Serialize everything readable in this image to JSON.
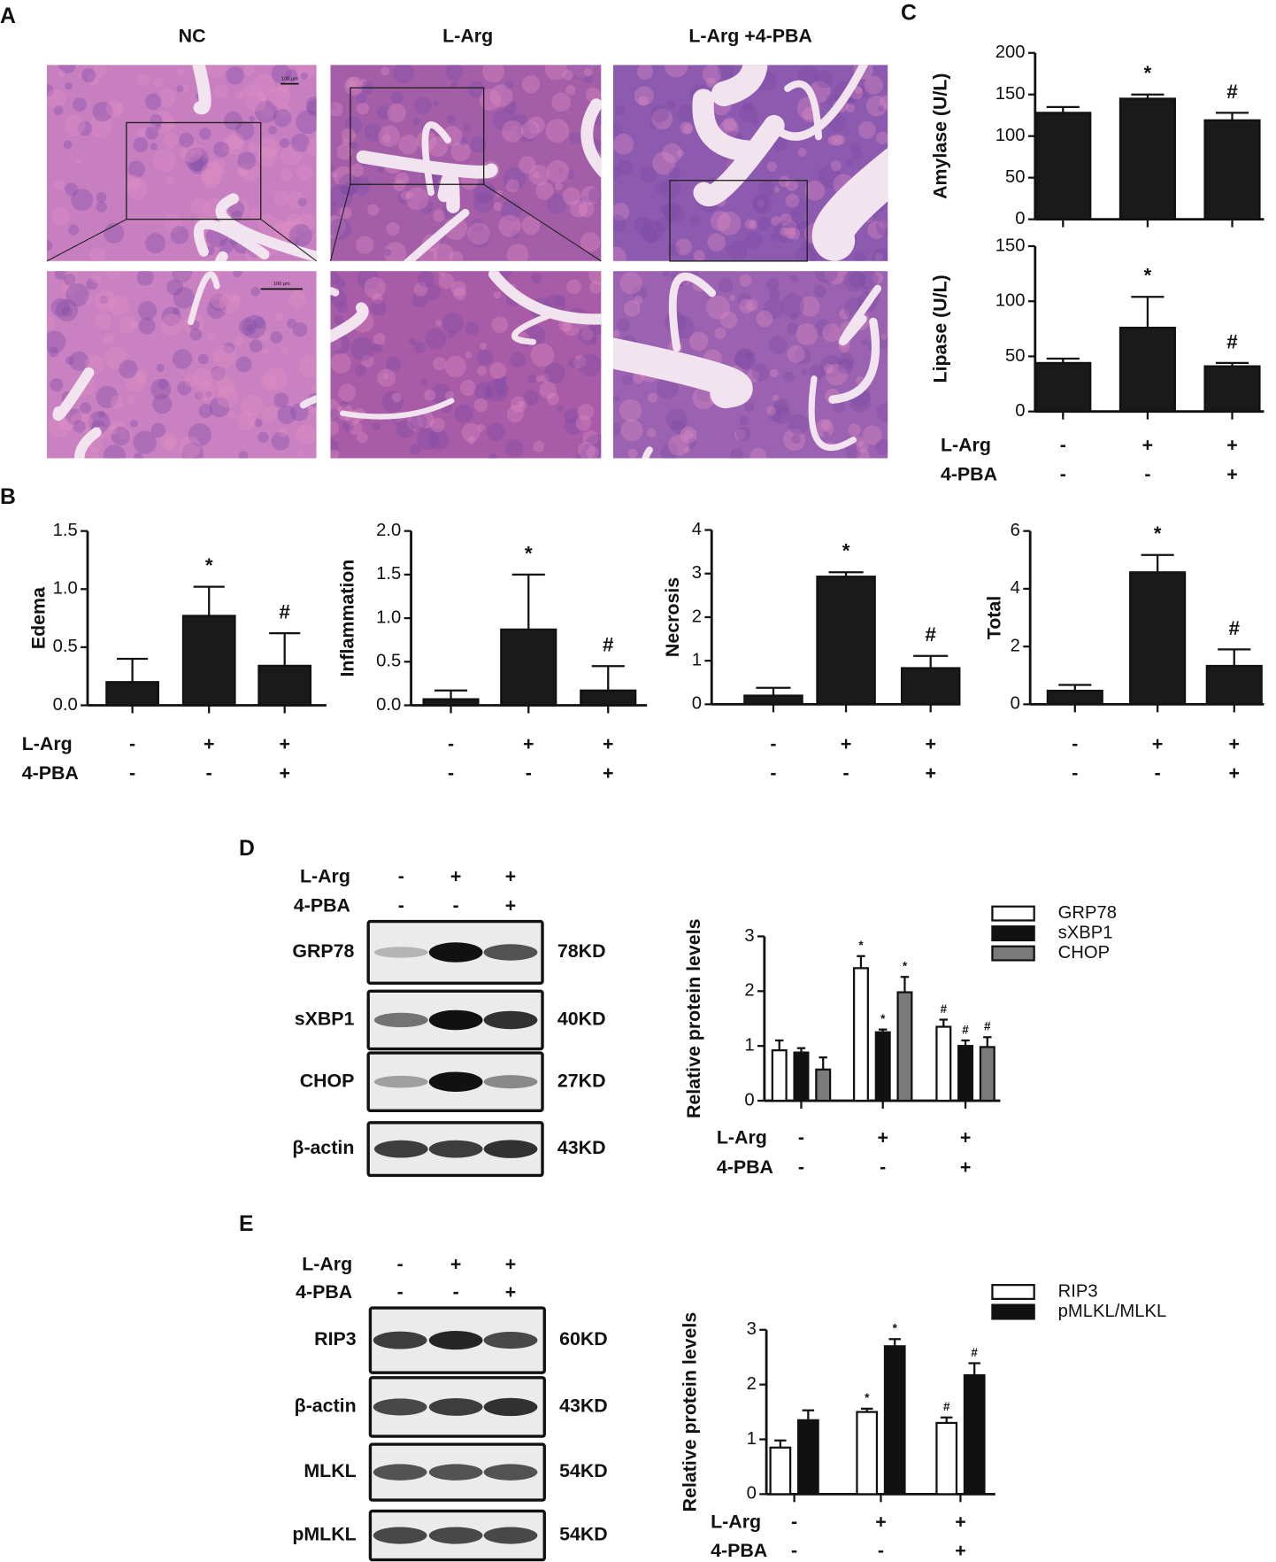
{
  "panels": [
    "A",
    "B",
    "C",
    "D",
    "E"
  ],
  "histology": {
    "columns": [
      "NC",
      "L-Arg",
      "L-Arg +4-PBA"
    ],
    "scale_bar": "100 μm"
  },
  "blots": [
    {
      "treatment_rows": [
        {
          "label": "L-Arg",
          "signs": [
            "-",
            "+",
            "+"
          ]
        },
        {
          "label": "4-PBA",
          "signs": [
            "-",
            "-",
            "+"
          ]
        }
      ],
      "rows": [
        {
          "protein": "GRP78",
          "size": "78KD"
        },
        {
          "protein": "sXBP1",
          "size": "40KD"
        },
        {
          "protein": "CHOP",
          "size": "27KD"
        },
        {
          "protein": "β-actin",
          "size": "43KD"
        }
      ]
    },
    {
      "treatment_rows": [
        {
          "label": "L-Arg",
          "signs": [
            "-",
            "+",
            "+"
          ]
        },
        {
          "label": "4-PBA",
          "signs": [
            "-",
            "-",
            "+"
          ]
        }
      ],
      "rows": [
        {
          "protein": "RIP3",
          "size": "60KD"
        },
        {
          "protein": "β-actin",
          "size": "43KD"
        },
        {
          "protein": "MLKL",
          "size": "54KD"
        },
        {
          "protein": "pMLKL",
          "size": "54KD"
        }
      ]
    }
  ],
  "chart_data": [
    {
      "type": "bar",
      "ylabel": "Edema",
      "values": [
        0.2,
        0.77,
        0.34
      ],
      "errors": [
        0.2,
        0.25,
        0.28
      ],
      "annotations": [
        null,
        "*",
        "#"
      ],
      "color": "#1a1a1a",
      "ylim": [
        0,
        1.5
      ],
      "yticks": [
        {
          "value": 0,
          "label": "0.0"
        },
        0.5,
        {
          "value": 1,
          "label": "1.0"
        },
        1.5
      ],
      "treatment_rows": [
        {
          "label": "L-Arg",
          "signs": [
            "-",
            "+",
            "+"
          ]
        },
        {
          "label": "4-PBA",
          "signs": [
            "-",
            "-",
            "+"
          ]
        }
      ]
    },
    {
      "type": "bar",
      "ylabel": "Inflammation",
      "values": [
        0.07,
        0.87,
        0.17
      ],
      "errors": [
        0.1,
        0.63,
        0.28
      ],
      "annotations": [
        null,
        "*",
        "#"
      ],
      "color": "#1a1a1a",
      "ylim": [
        0,
        2
      ],
      "yticks": [
        {
          "value": 0,
          "label": "0.0"
        },
        0.5,
        {
          "value": 1,
          "label": "1.0"
        },
        1.5,
        {
          "value": 2,
          "label": "2.0"
        }
      ],
      "treatment_rows": [
        {
          "signs": [
            "-",
            "+",
            "+"
          ]
        },
        {
          "signs": [
            "-",
            "-",
            "+"
          ]
        }
      ]
    },
    {
      "type": "bar",
      "ylabel": "Necrosis",
      "values": [
        0.2,
        2.93,
        0.83
      ],
      "errors": [
        0.18,
        0.1,
        0.28
      ],
      "annotations": [
        null,
        "*",
        "#"
      ],
      "color": "#1a1a1a",
      "ylim": [
        0,
        4
      ],
      "yticks": [
        0,
        1,
        2,
        3,
        4
      ],
      "treatment_rows": [
        {
          "signs": [
            "-",
            "+",
            "+"
          ]
        },
        {
          "signs": [
            "-",
            "-",
            "+"
          ]
        }
      ]
    },
    {
      "type": "bar",
      "ylabel": "Total",
      "values": [
        0.47,
        4.57,
        1.33
      ],
      "errors": [
        0.2,
        0.6,
        0.57
      ],
      "annotations": [
        null,
        "*",
        "#"
      ],
      "color": "#1a1a1a",
      "ylim": [
        0,
        6
      ],
      "yticks": [
        0,
        2,
        4,
        6
      ],
      "treatment_rows": [
        {
          "signs": [
            "-",
            "+",
            "+"
          ]
        },
        {
          "signs": [
            "-",
            "-",
            "+"
          ]
        }
      ]
    },
    {
      "type": "bar",
      "ylabel": "Amylase (U/L)",
      "values": [
        128,
        145,
        119
      ],
      "errors": [
        7,
        5,
        9
      ],
      "annotations": [
        null,
        "*",
        "#"
      ],
      "color": "#1a1a1a",
      "ylim": [
        0,
        200
      ],
      "yticks": [
        0,
        50,
        100,
        150,
        200
      ]
    },
    {
      "type": "bar",
      "ylabel": "Lipase (U/L)",
      "values": [
        44,
        76,
        41
      ],
      "errors": [
        4,
        28,
        3
      ],
      "annotations": [
        null,
        "*",
        "#"
      ],
      "color": "#1a1a1a",
      "ylim": [
        0,
        150
      ],
      "yticks": [
        0,
        50,
        100,
        150
      ],
      "treatment_rows": [
        {
          "label": "L-Arg",
          "signs": [
            "-",
            "+",
            "+"
          ]
        },
        {
          "label": "4-PBA",
          "signs": [
            "-",
            "-",
            "+"
          ]
        }
      ]
    },
    {
      "type": "bar",
      "ylabel": "Relative protein levels",
      "series": [
        {
          "name": "GRP78",
          "color": "#ffffff",
          "values": [
            0.92,
            2.42,
            1.35
          ],
          "errors": [
            0.18,
            0.22,
            0.13
          ],
          "annotations": [
            null,
            "*",
            "#"
          ]
        },
        {
          "name": "sXBP1",
          "color": "#111111",
          "values": [
            0.88,
            1.25,
            1.0
          ],
          "errors": [
            0.08,
            0.05,
            0.1
          ],
          "annotations": [
            null,
            "*",
            "#"
          ]
        },
        {
          "name": "CHOP",
          "color": "#7a7a7a",
          "values": [
            0.57,
            1.98,
            0.98
          ],
          "errors": [
            0.22,
            0.28,
            0.18
          ],
          "annotations": [
            null,
            "*",
            "#"
          ]
        }
      ],
      "ylim": [
        0,
        3
      ],
      "yticks": [
        0,
        1,
        2,
        3
      ],
      "treatment_rows": [
        {
          "label": "L-Arg",
          "signs": [
            "-",
            "+",
            "+"
          ]
        },
        {
          "label": "4-PBA",
          "signs": [
            "-",
            "-",
            "+"
          ]
        }
      ]
    },
    {
      "type": "bar",
      "ylabel": "Relative protein levels",
      "series": [
        {
          "name": "RIP3",
          "color": "#ffffff",
          "values": [
            0.85,
            1.5,
            1.3
          ],
          "errors": [
            0.13,
            0.06,
            0.1
          ],
          "annotations": [
            null,
            "*",
            "#"
          ]
        },
        {
          "name": "pMLKL/MLKL",
          "color": "#111111",
          "values": [
            1.35,
            2.7,
            2.17
          ],
          "errors": [
            0.18,
            0.13,
            0.22
          ],
          "annotations": [
            null,
            "*",
            "#"
          ]
        }
      ],
      "ylim": [
        0,
        3
      ],
      "yticks": [
        0,
        1,
        2,
        3
      ],
      "treatment_rows": [
        {
          "label": "L-Arg",
          "signs": [
            "-",
            "+",
            "+"
          ]
        },
        {
          "label": "4-PBA",
          "signs": [
            "-",
            "-",
            "+"
          ]
        }
      ]
    }
  ]
}
